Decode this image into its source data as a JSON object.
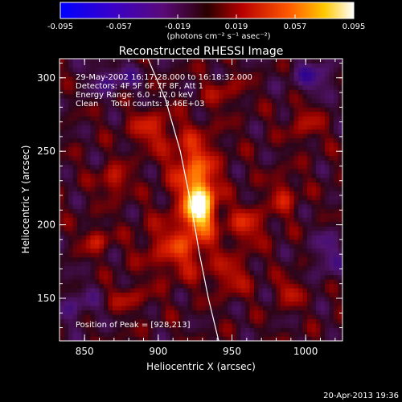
{
  "chart_data": {
    "type": "heatmap",
    "title": "Reconstructed RHESSI Image",
    "xlabel": "Heliocentric X (arcsec)",
    "ylabel": "Heliocentric Y (arcsec)",
    "xlim": [
      833,
      1025
    ],
    "ylim": [
      121,
      313
    ],
    "x_ticks": [
      850,
      900,
      950,
      1000
    ],
    "y_ticks": [
      150,
      200,
      250,
      300
    ],
    "colorbar": {
      "range": [
        -0.095,
        0.095
      ],
      "ticks": [
        "-0.095",
        "-0.057",
        "-0.019",
        "0.019",
        "0.057",
        "0.095"
      ],
      "unit_label": "(photons cm⁻² s⁻¹ asec⁻²)"
    },
    "annotations": {
      "time": "29-May-2002 16:17:28.000 to 16:18:32.000",
      "detectors": "Detectors: 4F 5F 6F 7F 8F, Att 1",
      "energy": "Energy Range: 6.0 - 12.0 keV",
      "method": "Clean     Total counts: 3.46E+03",
      "peak": "Position of Peak = [928,213]"
    },
    "peak": [
      928,
      213
    ],
    "footer_date": "20-Apr-2013 19:36",
    "intensity_features": [
      {
        "x": 928,
        "y": 213,
        "sx": 7,
        "sy": 11,
        "amp": 1.0
      },
      {
        "x": 924,
        "y": 240,
        "sx": 11,
        "sy": 16,
        "amp": 0.45
      },
      {
        "x": 915,
        "y": 185,
        "sx": 16,
        "sy": 14,
        "amp": 0.35
      },
      {
        "x": 895,
        "y": 265,
        "sx": 10,
        "sy": 9,
        "amp": 0.3
      },
      {
        "x": 870,
        "y": 230,
        "sx": 7,
        "sy": 7,
        "amp": 0.3
      },
      {
        "x": 858,
        "y": 190,
        "sx": 6,
        "sy": 6,
        "amp": 0.28
      },
      {
        "x": 960,
        "y": 200,
        "sx": 9,
        "sy": 9,
        "amp": 0.3
      },
      {
        "x": 985,
        "y": 220,
        "sx": 7,
        "sy": 9,
        "amp": 0.25
      },
      {
        "x": 990,
        "y": 155,
        "sx": 6,
        "sy": 6,
        "amp": 0.28
      },
      {
        "x": 950,
        "y": 165,
        "sx": 9,
        "sy": 8,
        "amp": 0.25
      },
      {
        "x": 880,
        "y": 150,
        "sx": 9,
        "sy": 6,
        "amp": 0.2
      },
      {
        "x": 1000,
        "y": 270,
        "sx": 8,
        "sy": 10,
        "amp": 0.2
      },
      {
        "x": 945,
        "y": 290,
        "sx": 9,
        "sy": 7,
        "amp": 0.18
      },
      {
        "x": 870,
        "y": 300,
        "sx": 12,
        "sy": 8,
        "amp": -0.25
      },
      {
        "x": 1005,
        "y": 300,
        "sx": 12,
        "sy": 9,
        "amp": -0.25
      },
      {
        "x": 845,
        "y": 145,
        "sx": 10,
        "sy": 10,
        "amp": -0.2
      },
      {
        "x": 1015,
        "y": 180,
        "sx": 8,
        "sy": 12,
        "amp": -0.22
      }
    ],
    "limb_curve": [
      [
        893,
        313
      ],
      [
        905,
        285
      ],
      [
        915,
        250
      ],
      [
        922,
        215
      ],
      [
        928,
        180
      ],
      [
        934,
        150
      ],
      [
        941,
        121
      ]
    ]
  }
}
